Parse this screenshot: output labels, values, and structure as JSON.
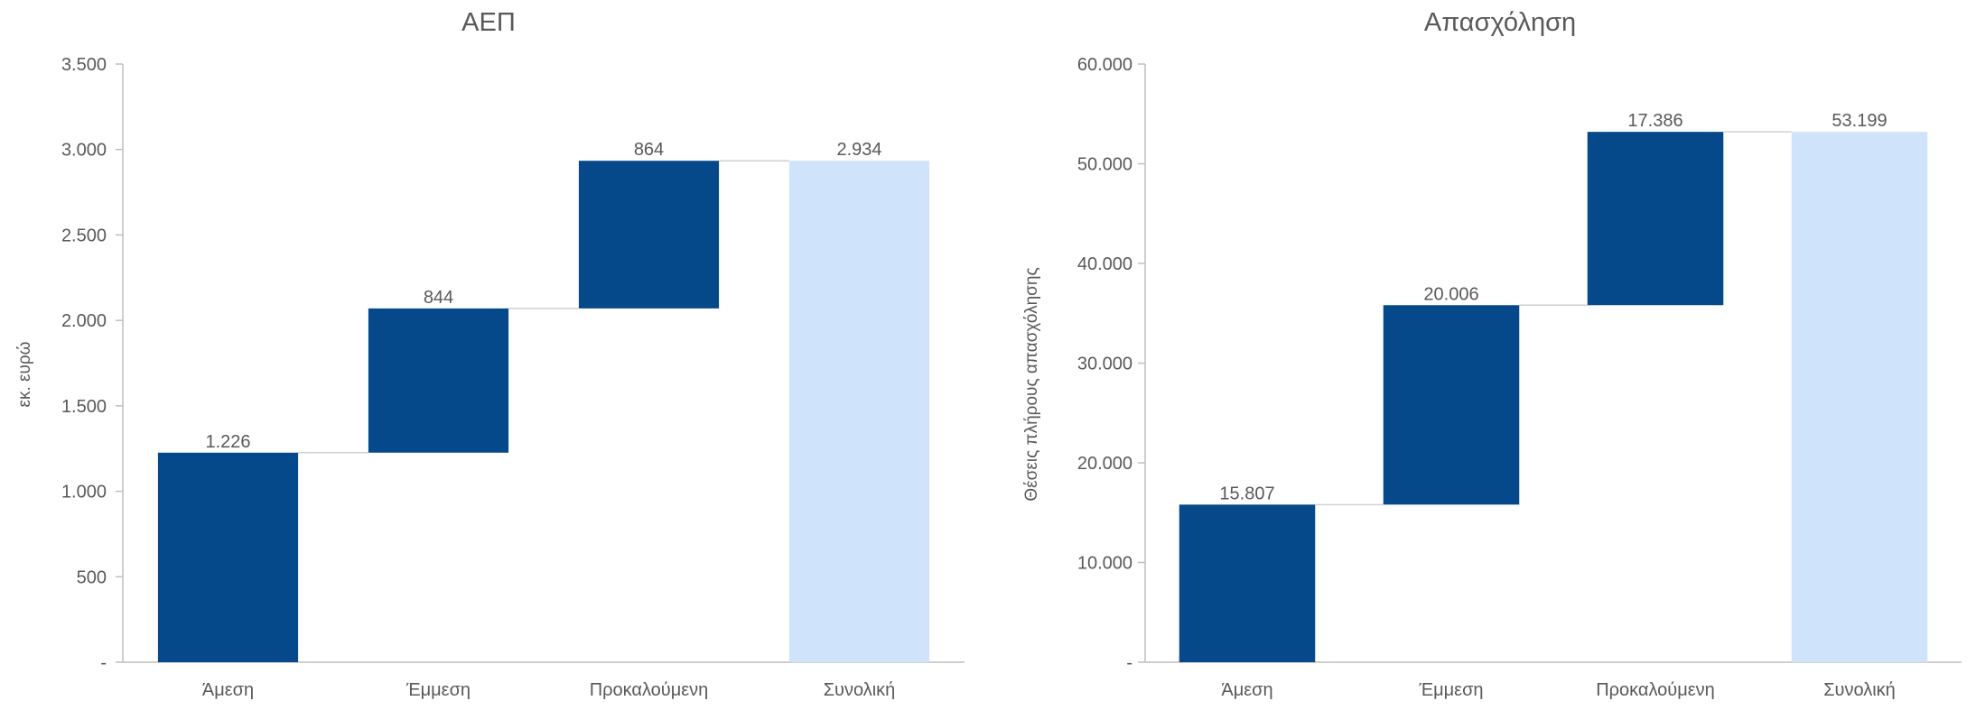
{
  "colors": {
    "bar": "#05498A",
    "total": "#CFE3FA",
    "axis": "#BFBFBF",
    "text": "#595959",
    "connector": "#D0D0D0"
  },
  "chart_data": [
    {
      "type": "bar",
      "subtype": "waterfall",
      "title": "ΑΕΠ",
      "xlabel": "",
      "ylabel": "εκ. ευρώ",
      "categories": [
        "Άμεση",
        "Έμμεση",
        "Προκαλούμενη",
        "Συνολική"
      ],
      "values": [
        1226,
        844,
        864,
        2934
      ],
      "data_labels": [
        "1.226",
        "844",
        "864",
        "2.934"
      ],
      "is_total": [
        false,
        false,
        false,
        true
      ],
      "ylim": [
        0,
        3500
      ],
      "yticks": [
        0,
        500,
        1000,
        1500,
        2000,
        2500,
        3000,
        3500
      ],
      "ytick_labels": [
        "-",
        "500",
        "1.000",
        "1.500",
        "2.000",
        "2.500",
        "3.000",
        "3.500"
      ],
      "grid": false,
      "legend": "none"
    },
    {
      "type": "bar",
      "subtype": "waterfall",
      "title": "Απασχόληση",
      "xlabel": "",
      "ylabel": "Θέσεις πλήρους απασχόλησης",
      "categories": [
        "Άμεση",
        "Έμμεση",
        "Προκαλούμενη",
        "Συνολική"
      ],
      "values": [
        15807,
        20006,
        17386,
        53199
      ],
      "data_labels": [
        "15.807",
        "20.006",
        "17.386",
        "53.199"
      ],
      "is_total": [
        false,
        false,
        false,
        true
      ],
      "ylim": [
        0,
        60000
      ],
      "yticks": [
        0,
        10000,
        20000,
        30000,
        40000,
        50000,
        60000
      ],
      "ytick_labels": [
        "-",
        "10.000",
        "20.000",
        "30.000",
        "40.000",
        "50.000",
        "60.000"
      ],
      "grid": false,
      "legend": "none"
    }
  ]
}
